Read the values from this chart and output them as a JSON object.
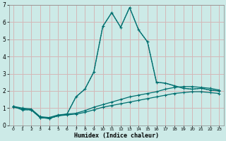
{
  "xlabel": "Humidex (Indice chaleur)",
  "background_color": "#cceae7",
  "grid_color": "#d4b8b8",
  "line_color": "#007070",
  "xlim": [
    -0.5,
    23.5
  ],
  "ylim": [
    0,
    7
  ],
  "xticks": [
    0,
    1,
    2,
    3,
    4,
    5,
    6,
    7,
    8,
    9,
    10,
    11,
    12,
    13,
    14,
    15,
    16,
    17,
    18,
    19,
    20,
    21,
    22,
    23
  ],
  "yticks": [
    0,
    1,
    2,
    3,
    4,
    5,
    6,
    7
  ],
  "series": [
    {
      "x": [
        0,
        1,
        2,
        3,
        4,
        5,
        6,
        7,
        8,
        9,
        10,
        11,
        12,
        13,
        14,
        15,
        16,
        17,
        18,
        19,
        20,
        21,
        22,
        23
      ],
      "y": [
        1.1,
        0.9,
        0.9,
        0.45,
        0.4,
        0.55,
        0.65,
        1.65,
        2.1,
        3.1,
        5.75,
        6.55,
        5.7,
        6.85,
        5.55,
        4.85,
        2.5,
        2.45,
        2.3,
        2.15,
        2.1,
        2.15,
        2.05,
        2.0
      ],
      "linestyle": "dotted",
      "linewidth": 0.9,
      "marker": null,
      "markersize": 0
    },
    {
      "x": [
        0,
        1,
        2,
        3,
        4,
        5,
        6,
        7,
        8,
        9,
        10,
        11,
        12,
        13,
        14,
        15,
        16,
        17,
        18,
        19,
        20,
        21,
        22,
        23
      ],
      "y": [
        1.1,
        0.9,
        0.9,
        0.45,
        0.4,
        0.55,
        0.65,
        1.65,
        2.1,
        3.1,
        5.75,
        6.55,
        5.7,
        6.85,
        5.55,
        4.85,
        2.5,
        2.45,
        2.3,
        2.15,
        2.1,
        2.15,
        2.05,
        2.0
      ],
      "linestyle": "solid",
      "linewidth": 1.0,
      "marker": "+",
      "markersize": 3.5
    },
    {
      "x": [
        0,
        1,
        2,
        3,
        4,
        5,
        6,
        7,
        8,
        9,
        10,
        11,
        12,
        13,
        14,
        15,
        16,
        17,
        18,
        19,
        20,
        21,
        22,
        23
      ],
      "y": [
        1.1,
        1.0,
        0.95,
        0.5,
        0.45,
        0.6,
        0.65,
        0.7,
        0.85,
        1.05,
        1.2,
        1.35,
        1.5,
        1.65,
        1.75,
        1.85,
        1.95,
        2.1,
        2.2,
        2.25,
        2.25,
        2.2,
        2.15,
        2.05
      ],
      "linestyle": "solid",
      "linewidth": 0.9,
      "marker": "+",
      "markersize": 2.5
    },
    {
      "x": [
        0,
        1,
        2,
        3,
        4,
        5,
        6,
        7,
        8,
        9,
        10,
        11,
        12,
        13,
        14,
        15,
        16,
        17,
        18,
        19,
        20,
        21,
        22,
        23
      ],
      "y": [
        1.05,
        0.95,
        0.9,
        0.45,
        0.4,
        0.55,
        0.6,
        0.65,
        0.75,
        0.9,
        1.05,
        1.15,
        1.25,
        1.35,
        1.45,
        1.55,
        1.65,
        1.75,
        1.85,
        1.9,
        1.95,
        1.95,
        1.9,
        1.85
      ],
      "linestyle": "solid",
      "linewidth": 0.9,
      "marker": "+",
      "markersize": 2.5
    }
  ]
}
